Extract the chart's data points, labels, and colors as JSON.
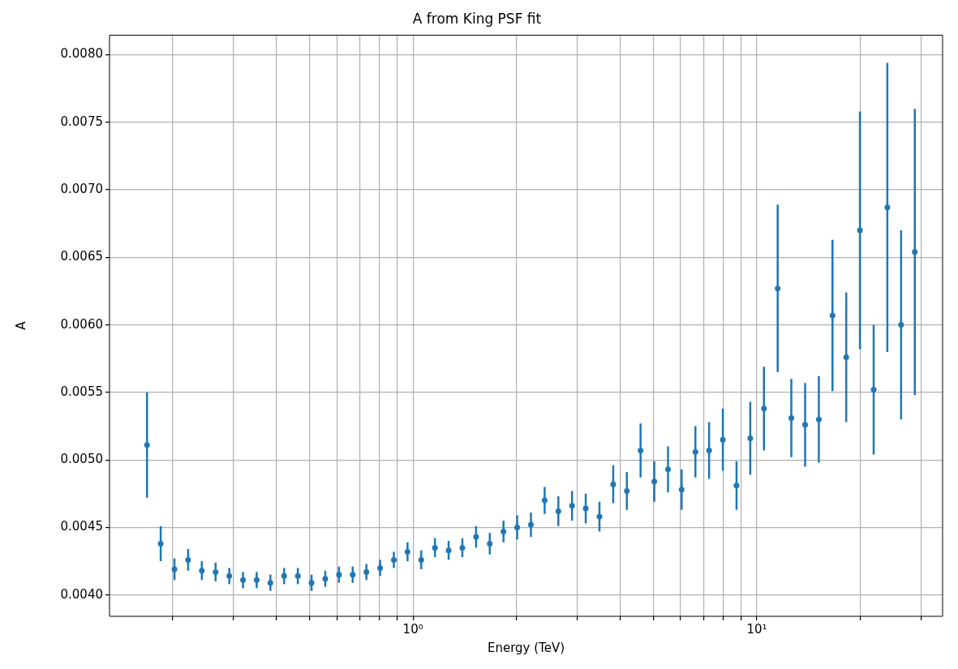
{
  "chart_data": {
    "type": "scatter",
    "title": "A from King PSF fit",
    "xlabel": "Energy (TeV)",
    "ylabel": "A",
    "log": "x",
    "grid": true,
    "marker": "circle",
    "x": [
      0.1684,
      0.1846,
      0.2024,
      0.2218,
      0.2431,
      0.2666,
      0.2922,
      0.3203,
      0.3511,
      0.3848,
      0.4219,
      0.4624,
      0.5069,
      0.5557,
      0.6091,
      0.6677,
      0.7319,
      0.8023,
      0.8795,
      0.9639,
      1.0566,
      1.1583,
      1.2697,
      1.3917,
      1.5256,
      1.6723,
      1.8333,
      2.009,
      2.203,
      2.415,
      2.647,
      2.901,
      3.18,
      3.486,
      3.822,
      4.188,
      4.591,
      5.033,
      5.517,
      6.045,
      6.628,
      7.265,
      7.965,
      8.73,
      9.57,
      10.49,
      11.5,
      12.6,
      13.82,
      15.15,
      16.6,
      18.2,
      19.95,
      21.87,
      23.97,
      26.28,
      28.81
    ],
    "series": [
      {
        "color": "#1f77b4",
        "values": [
          0.00511,
          0.00438,
          0.00419,
          0.00426,
          0.00418,
          0.00417,
          0.00414,
          0.00411,
          0.00411,
          0.00409,
          0.00414,
          0.00414,
          0.00409,
          0.00412,
          0.00415,
          0.00415,
          0.00417,
          0.0042,
          0.00426,
          0.00432,
          0.00426,
          0.00435,
          0.00433,
          0.00435,
          0.00443,
          0.00438,
          0.00447,
          0.0045,
          0.00452,
          0.0047,
          0.00462,
          0.00466,
          0.00464,
          0.00458,
          0.00482,
          0.00477,
          0.00507,
          0.00484,
          0.00493,
          0.00478,
          0.00506,
          0.00507,
          0.00515,
          0.00481,
          0.00516,
          0.00538,
          0.00627,
          0.00531,
          0.00526,
          0.0053,
          0.00607,
          0.00576,
          0.0067,
          0.00552,
          0.00687,
          0.006,
          0.00654
        ],
        "errors": [
          0.00039,
          0.00013,
          8e-05,
          8e-05,
          7e-05,
          7e-05,
          6e-05,
          6e-05,
          6e-05,
          6e-05,
          6e-05,
          6e-05,
          6e-05,
          6e-05,
          6e-05,
          6e-05,
          6e-05,
          6e-05,
          6e-05,
          7e-05,
          7e-05,
          7e-05,
          7e-05,
          7e-05,
          8e-05,
          8e-05,
          8e-05,
          9e-05,
          9e-05,
          0.0001,
          0.00011,
          0.00011,
          0.00011,
          0.00011,
          0.00014,
          0.00014,
          0.0002,
          0.00015,
          0.00017,
          0.00015,
          0.00019,
          0.00021,
          0.00023,
          0.00018,
          0.00027,
          0.00031,
          0.00062,
          0.00029,
          0.00031,
          0.00032,
          0.00056,
          0.00048,
          0.00088,
          0.00048,
          0.00107,
          0.0007,
          0.00106
        ]
      }
    ],
    "xlim": [
      0.131,
      34.7
    ],
    "ylim": [
      0.003842,
      0.008145
    ],
    "xticks": [
      {
        "value": 0.2,
        "label": null
      },
      {
        "value": 0.3,
        "label": null
      },
      {
        "value": 0.4,
        "label": null
      },
      {
        "value": 0.5,
        "label": null
      },
      {
        "value": 0.6,
        "label": null
      },
      {
        "value": 0.7,
        "label": null
      },
      {
        "value": 0.8,
        "label": null
      },
      {
        "value": 0.9,
        "label": null
      },
      {
        "value": 1,
        "label": "10⁰"
      },
      {
        "value": 2,
        "label": null
      },
      {
        "value": 3,
        "label": null
      },
      {
        "value": 4,
        "label": null
      },
      {
        "value": 5,
        "label": null
      },
      {
        "value": 6,
        "label": null
      },
      {
        "value": 7,
        "label": null
      },
      {
        "value": 8,
        "label": null
      },
      {
        "value": 9,
        "label": null
      },
      {
        "value": 10,
        "label": "10¹"
      },
      {
        "value": 20,
        "label": null
      },
      {
        "value": 30,
        "label": null
      }
    ],
    "yticks": [
      {
        "value": 0.004,
        "label": "0.0040"
      },
      {
        "value": 0.0045,
        "label": "0.0045"
      },
      {
        "value": 0.005,
        "label": "0.0050"
      },
      {
        "value": 0.0055,
        "label": "0.0055"
      },
      {
        "value": 0.006,
        "label": "0.0060"
      },
      {
        "value": 0.0065,
        "label": "0.0065"
      },
      {
        "value": 0.007,
        "label": "0.0070"
      },
      {
        "value": 0.0075,
        "label": "0.0075"
      },
      {
        "value": 0.008,
        "label": "0.0080"
      }
    ]
  }
}
